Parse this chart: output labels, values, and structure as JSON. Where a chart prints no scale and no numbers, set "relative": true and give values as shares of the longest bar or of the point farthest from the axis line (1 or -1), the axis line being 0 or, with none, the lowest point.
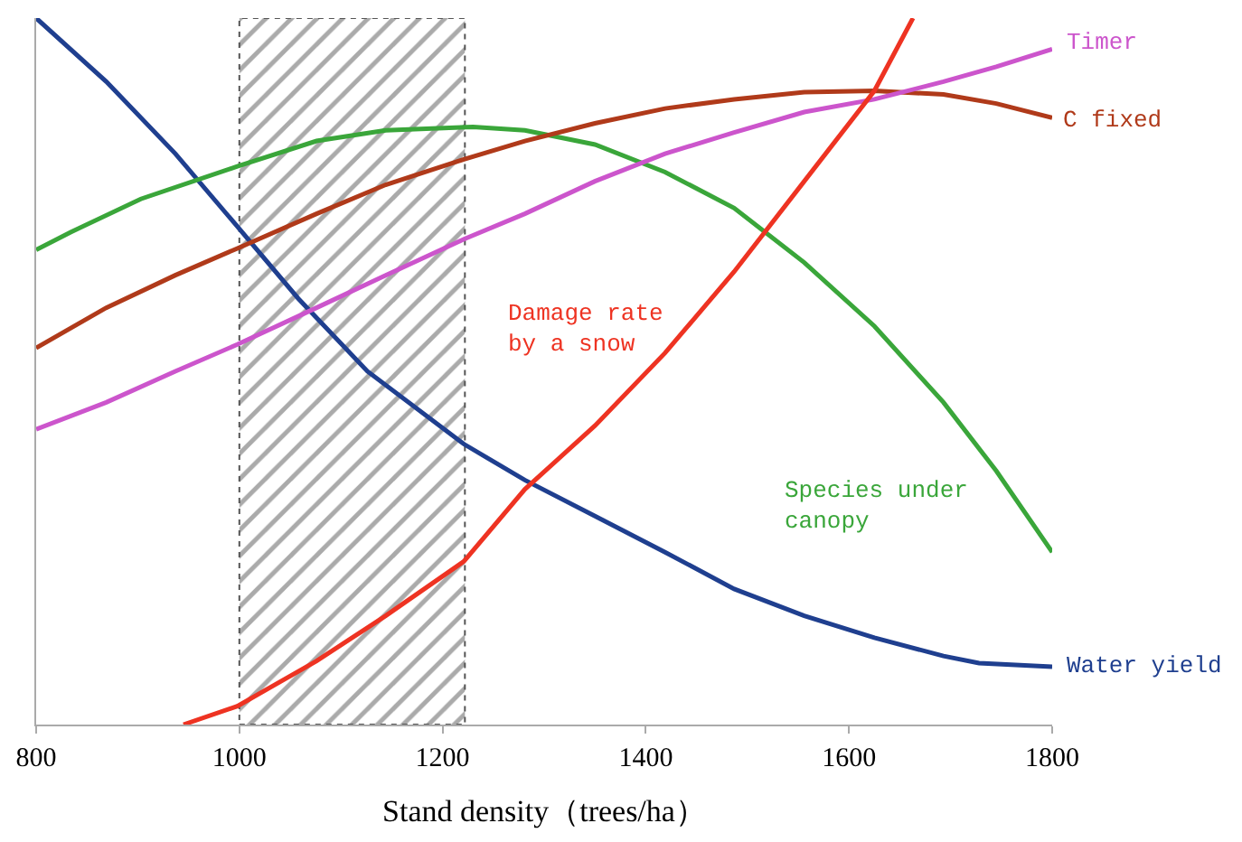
{
  "chart_data": {
    "type": "line",
    "relative": true,
    "xlabel": "Stand density（trees/ha）",
    "xlim": [
      800,
      1800
    ],
    "xticks": [
      800,
      1000,
      1200,
      1400,
      1600,
      1800
    ],
    "legend": false,
    "marker": "none",
    "line_style": "solid",
    "bands": [
      {
        "axis": "x",
        "from": 1000,
        "to": 1222,
        "color": "#555555"
      }
    ],
    "series": [
      {
        "name": "Water yield",
        "color": "#1f3f8f",
        "x": [
          800,
          869,
          937,
          998,
          1058,
          1126,
          1221,
          1281,
          1350,
          1419,
          1487,
          1556,
          1625,
          1693,
          1728,
          1800
        ],
        "values": [
          1,
          0.91,
          0.808,
          0.705,
          0.603,
          0.5,
          0.397,
          0.346,
          0.295,
          0.244,
          0.192,
          0.154,
          0.123,
          0.097,
          0.087,
          0.082
        ]
      },
      {
        "name": "Species under\ncanopy",
        "color": "#3aa63a",
        "x": [
          800,
          834,
          903,
          998,
          1076,
          1144,
          1230,
          1281,
          1350,
          1419,
          1487,
          1556,
          1625,
          1693,
          1745,
          1800
        ],
        "values": [
          0.672,
          0.697,
          0.744,
          0.79,
          0.826,
          0.841,
          0.846,
          0.841,
          0.821,
          0.782,
          0.731,
          0.654,
          0.564,
          0.456,
          0.359,
          0.244
        ]
      },
      {
        "name": "C fixed",
        "color": "#b03a1a",
        "x": [
          800,
          869,
          937,
          998,
          1076,
          1144,
          1221,
          1281,
          1350,
          1419,
          1487,
          1556,
          1625,
          1693,
          1745,
          1800
        ],
        "values": [
          0.533,
          0.59,
          0.636,
          0.674,
          0.723,
          0.764,
          0.8,
          0.826,
          0.851,
          0.872,
          0.885,
          0.895,
          0.897,
          0.892,
          0.879,
          0.859
        ]
      },
      {
        "name": "Timer",
        "color": "#cc55cc",
        "x": [
          800,
          869,
          937,
          998,
          1076,
          1144,
          1221,
          1281,
          1350,
          1419,
          1487,
          1556,
          1625,
          1693,
          1745,
          1800
        ],
        "values": [
          0.418,
          0.456,
          0.5,
          0.538,
          0.59,
          0.636,
          0.687,
          0.723,
          0.769,
          0.808,
          0.838,
          0.867,
          0.885,
          0.91,
          0.931,
          0.956
        ]
      },
      {
        "name": "Damage rate\nby a snow",
        "color": "#ee3322",
        "x": [
          945,
          998,
          1076,
          1144,
          1221,
          1281,
          1350,
          1419,
          1487,
          1556,
          1625,
          1663
        ],
        "values": [
          0,
          0.026,
          0.09,
          0.154,
          0.231,
          0.333,
          0.423,
          0.526,
          0.641,
          0.769,
          0.897,
          1
        ]
      }
    ]
  }
}
